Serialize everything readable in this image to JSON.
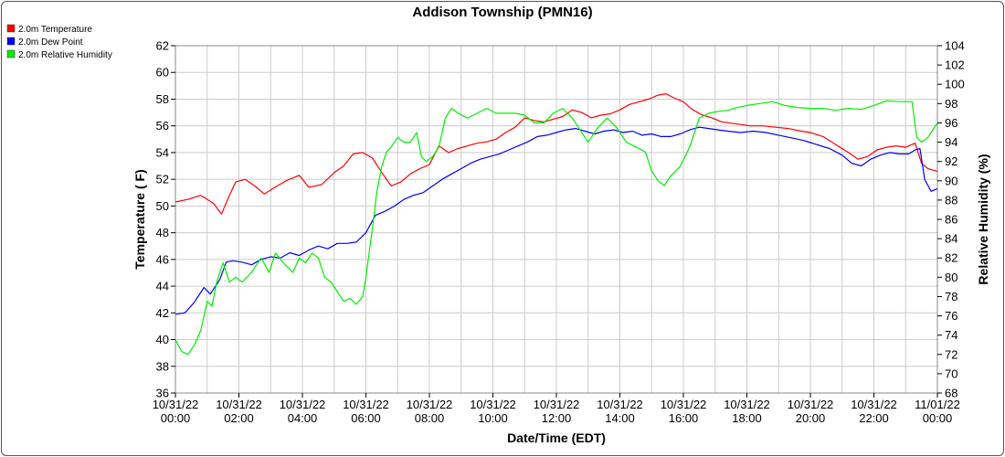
{
  "chart_data": {
    "type": "line",
    "title": "Addison Township (PMN16)",
    "xlabel": "Date/Time (EDT)",
    "ylabel": "Temperature ( F)",
    "y2label": "Relative Humidity (%)",
    "grid": true,
    "legend_placement": "top-left",
    "x_unit": "hours",
    "xlim": [
      0,
      24
    ],
    "ylim": [
      36,
      62
    ],
    "y2lim": [
      68,
      104
    ],
    "y_ticks": [
      "36",
      "38",
      "40",
      "42",
      "44",
      "46",
      "48",
      "50",
      "52",
      "54",
      "56",
      "58",
      "60",
      "62"
    ],
    "y2_ticks": [
      "68",
      "70",
      "72",
      "74",
      "76",
      "78",
      "80",
      "82",
      "84",
      "86",
      "88",
      "90",
      "92",
      "94",
      "96",
      "98",
      "100",
      "102",
      "104"
    ],
    "x_ticks": [
      {
        "date": "10/31/22",
        "time": "00:00"
      },
      {
        "date": "10/31/22",
        "time": "02:00"
      },
      {
        "date": "10/31/22",
        "time": "04:00"
      },
      {
        "date": "10/31/22",
        "time": "06:00"
      },
      {
        "date": "10/31/22",
        "time": "08:00"
      },
      {
        "date": "10/31/22",
        "time": "10:00"
      },
      {
        "date": "10/31/22",
        "time": "12:00"
      },
      {
        "date": "10/31/22",
        "time": "14:00"
      },
      {
        "date": "10/31/22",
        "time": "16:00"
      },
      {
        "date": "10/31/22",
        "time": "18:00"
      },
      {
        "date": "10/31/22",
        "time": "20:00"
      },
      {
        "date": "10/31/22",
        "time": "22:00"
      },
      {
        "date": "11/01/22",
        "time": "00:00"
      }
    ],
    "series": [
      {
        "name": "2.0m Temperature",
        "color": "#ff0000",
        "axis": "left",
        "x": [
          0,
          0.4,
          0.8,
          1.2,
          1.45,
          1.7,
          1.9,
          2.2,
          2.5,
          2.8,
          3.2,
          3.5,
          3.9,
          4.2,
          4.6,
          5.0,
          5.3,
          5.6,
          5.9,
          6.2,
          6.5,
          6.8,
          7.1,
          7.4,
          7.7,
          8.0,
          8.3,
          8.6,
          8.9,
          9.2,
          9.5,
          9.8,
          10.1,
          10.4,
          10.7,
          11.0,
          11.3,
          11.6,
          11.9,
          12.2,
          12.5,
          12.8,
          13.1,
          13.4,
          13.7,
          14.0,
          14.3,
          14.6,
          14.9,
          15.2,
          15.45,
          15.7,
          16.0,
          16.3,
          16.6,
          16.9,
          17.2,
          17.5,
          17.8,
          18.1,
          18.5,
          18.9,
          19.3,
          19.7,
          20.0,
          20.4,
          20.8,
          21.2,
          21.5,
          21.8,
          22.1,
          22.4,
          22.7,
          23.0,
          23.3,
          23.5,
          23.7,
          24.0
        ],
        "values": [
          50.3,
          50.5,
          50.8,
          50.2,
          49.4,
          50.8,
          51.8,
          52.0,
          51.5,
          50.9,
          51.5,
          51.9,
          52.3,
          51.4,
          51.6,
          52.5,
          53.0,
          53.9,
          54.0,
          53.6,
          52.5,
          51.5,
          51.8,
          52.4,
          52.8,
          53.1,
          54.5,
          54.0,
          54.3,
          54.5,
          54.7,
          54.8,
          55.0,
          55.5,
          55.9,
          56.6,
          56.4,
          56.3,
          56.5,
          56.7,
          57.2,
          57.0,
          56.6,
          56.8,
          56.9,
          57.2,
          57.6,
          57.8,
          58.0,
          58.3,
          58.4,
          58.1,
          57.8,
          57.2,
          56.8,
          56.6,
          56.3,
          56.2,
          56.1,
          56.0,
          56.0,
          55.9,
          55.8,
          55.6,
          55.5,
          55.2,
          54.6,
          54.0,
          53.5,
          53.7,
          54.2,
          54.4,
          54.5,
          54.4,
          54.7,
          53.2,
          52.8,
          52.6
        ]
      },
      {
        "name": "2.0m Dew Point",
        "color": "#0000ff",
        "axis": "left",
        "x": [
          0,
          0.3,
          0.6,
          0.9,
          1.1,
          1.4,
          1.6,
          1.8,
          2.1,
          2.4,
          2.7,
          3.0,
          3.3,
          3.6,
          3.9,
          4.2,
          4.5,
          4.8,
          5.1,
          5.4,
          5.7,
          6.0,
          6.3,
          6.6,
          6.9,
          7.2,
          7.5,
          7.8,
          8.1,
          8.4,
          8.7,
          9.0,
          9.3,
          9.6,
          9.9,
          10.2,
          10.5,
          10.8,
          11.1,
          11.4,
          11.7,
          12.0,
          12.3,
          12.6,
          12.9,
          13.2,
          13.5,
          13.8,
          14.1,
          14.4,
          14.7,
          15.0,
          15.3,
          15.6,
          15.9,
          16.2,
          16.5,
          16.8,
          17.1,
          17.4,
          17.8,
          18.2,
          18.6,
          19.0,
          19.4,
          19.8,
          20.2,
          20.6,
          21.0,
          21.3,
          21.6,
          21.9,
          22.2,
          22.5,
          22.8,
          23.1,
          23.3,
          23.45,
          23.6,
          23.8,
          24.0
        ],
        "values": [
          41.9,
          42.0,
          42.8,
          43.9,
          43.4,
          44.5,
          45.8,
          45.9,
          45.8,
          45.6,
          46.0,
          46.2,
          46.1,
          46.5,
          46.3,
          46.7,
          47.0,
          46.8,
          47.2,
          47.2,
          47.3,
          48.0,
          49.3,
          49.6,
          50.0,
          50.5,
          50.8,
          51.0,
          51.5,
          52.0,
          52.4,
          52.8,
          53.2,
          53.5,
          53.7,
          53.9,
          54.2,
          54.5,
          54.8,
          55.2,
          55.3,
          55.5,
          55.7,
          55.8,
          55.6,
          55.4,
          55.6,
          55.7,
          55.5,
          55.6,
          55.3,
          55.4,
          55.2,
          55.2,
          55.4,
          55.7,
          55.9,
          55.8,
          55.7,
          55.6,
          55.5,
          55.6,
          55.5,
          55.3,
          55.1,
          54.9,
          54.6,
          54.3,
          53.8,
          53.2,
          53.0,
          53.5,
          53.8,
          54.0,
          53.9,
          53.9,
          54.2,
          54.3,
          52.0,
          51.1,
          51.3
        ]
      },
      {
        "name": "2.0m Relative Humidity",
        "color": "#00ee00",
        "axis": "right",
        "x": [
          0,
          0.2,
          0.4,
          0.6,
          0.8,
          1.0,
          1.15,
          1.3,
          1.5,
          1.7,
          1.9,
          2.1,
          2.4,
          2.7,
          2.95,
          3.15,
          3.4,
          3.7,
          3.9,
          4.1,
          4.3,
          4.5,
          4.7,
          4.9,
          5.1,
          5.3,
          5.5,
          5.7,
          5.9,
          6.0,
          6.2,
          6.35,
          6.5,
          6.65,
          6.8,
          7.0,
          7.2,
          7.4,
          7.6,
          7.75,
          7.9,
          8.1,
          8.3,
          8.5,
          8.7,
          8.9,
          9.2,
          9.5,
          9.8,
          10.1,
          10.4,
          10.7,
          11.0,
          11.3,
          11.6,
          11.9,
          12.2,
          12.5,
          12.8,
          13.0,
          13.3,
          13.6,
          13.9,
          14.2,
          14.5,
          14.8,
          15.0,
          15.2,
          15.4,
          15.6,
          15.9,
          16.2,
          16.5,
          16.8,
          17.1,
          17.4,
          17.7,
          18.0,
          18.4,
          18.8,
          19.2,
          19.6,
          20.0,
          20.4,
          20.8,
          21.2,
          21.6,
          22.0,
          22.4,
          22.8,
          23.2,
          23.35,
          23.5,
          23.7,
          23.9,
          24.0
        ],
        "values": [
          73.5,
          72.3,
          72.0,
          73.0,
          74.5,
          77.5,
          77.0,
          79.5,
          81.5,
          79.5,
          80.0,
          79.5,
          80.5,
          82.0,
          80.5,
          82.5,
          81.5,
          80.5,
          82.0,
          81.5,
          82.5,
          82.0,
          80.0,
          79.5,
          78.5,
          77.5,
          77.8,
          77.2,
          78.0,
          80.0,
          85.0,
          89.0,
          91.5,
          93.0,
          93.5,
          94.5,
          94.0,
          94.0,
          95.0,
          92.5,
          92.0,
          92.5,
          93.5,
          96.5,
          97.5,
          97.0,
          96.5,
          97.0,
          97.5,
          97.0,
          97.0,
          97.0,
          96.8,
          96.0,
          96.0,
          97.0,
          97.5,
          96.5,
          95.0,
          94.0,
          95.5,
          96.5,
          95.5,
          94.0,
          93.5,
          93.0,
          91.0,
          90.0,
          89.5,
          90.5,
          91.5,
          93.5,
          96.5,
          97.0,
          97.2,
          97.3,
          97.6,
          97.8,
          98.0,
          98.2,
          97.8,
          97.6,
          97.5,
          97.5,
          97.3,
          97.5,
          97.4,
          97.8,
          98.3,
          98.2,
          98.2,
          94.5,
          94.0,
          94.5,
          95.5,
          96.0
        ]
      }
    ]
  }
}
